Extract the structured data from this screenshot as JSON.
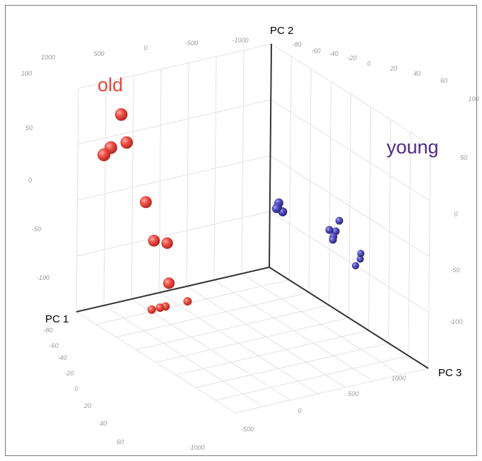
{
  "chart_data": {
    "type": "scatter",
    "title": "",
    "axes": {
      "x": {
        "label": "PC 1",
        "range": [
          -80,
          60
        ]
      },
      "y": {
        "label": "PC 2",
        "range": [
          -100,
          100
        ]
      },
      "z": {
        "label": "PC 3",
        "range": [
          -1000,
          1000
        ]
      }
    },
    "grid": true,
    "ticks": {
      "left_wall_z": [
        "1000",
        "500",
        "0",
        "-500",
        "-1000"
      ],
      "left_wall_y": [
        "100",
        "50",
        "0",
        "-50",
        "-100"
      ],
      "back_wall_x": [
        "-80",
        "-60",
        "-40",
        "-20",
        "0",
        "20",
        "40",
        "60"
      ],
      "back_wall_y": [
        "100",
        "50",
        "0",
        "-50",
        "-100"
      ],
      "floor_x": [
        "-80",
        "-60",
        "-40",
        "-20",
        "0",
        "20",
        "40",
        "60"
      ],
      "floor_z": [
        "-1000",
        "-500",
        "0",
        "500",
        "1000"
      ]
    },
    "series": [
      {
        "name": "old",
        "color": "#e8463c",
        "points": [
          {
            "x": -65,
            "y": 85,
            "z": 720
          },
          {
            "x": -70,
            "y": 55,
            "z": 760
          },
          {
            "x": -62,
            "y": 60,
            "z": 700
          },
          {
            "x": -75,
            "y": 50,
            "z": 760
          },
          {
            "x": -50,
            "y": 5,
            "z": 660
          },
          {
            "x": -45,
            "y": -30,
            "z": 640
          },
          {
            "x": -40,
            "y": -30,
            "z": 560
          },
          {
            "x": -35,
            "y": -70,
            "z": 620
          }
        ]
      },
      {
        "name": "young",
        "color": "#4d44b5",
        "points": [
          {
            "x": 15,
            "y": 15,
            "z": -520
          },
          {
            "x": 18,
            "y": 8,
            "z": -520
          },
          {
            "x": 20,
            "y": 3,
            "z": -480
          },
          {
            "x": 22,
            "y": 10,
            "z": -480
          },
          {
            "x": 28,
            "y": 15,
            "z": -420
          },
          {
            "x": 32,
            "y": -20,
            "z": -560
          },
          {
            "x": 40,
            "y": -20,
            "z": -480
          },
          {
            "x": 45,
            "y": -20,
            "z": -400
          },
          {
            "x": 2,
            "y": 18,
            "z": -80
          },
          {
            "x": 4,
            "y": 18,
            "z": -60
          },
          {
            "x": 6,
            "y": 20,
            "z": -40
          },
          {
            "x": 10,
            "y": 10,
            "z": -20
          }
        ]
      }
    ],
    "shadow_points": [
      {
        "x": -28,
        "y": -100,
        "z": 780
      },
      {
        "x": -38,
        "y": -100,
        "z": 780
      },
      {
        "x": -32,
        "y": -100,
        "z": 780
      },
      {
        "x": -12,
        "y": -100,
        "z": 780
      }
    ],
    "annotations": [
      {
        "text": "old",
        "color": "#e8463c"
      },
      {
        "text": "young",
        "color": "#4a2a8a"
      }
    ]
  }
}
